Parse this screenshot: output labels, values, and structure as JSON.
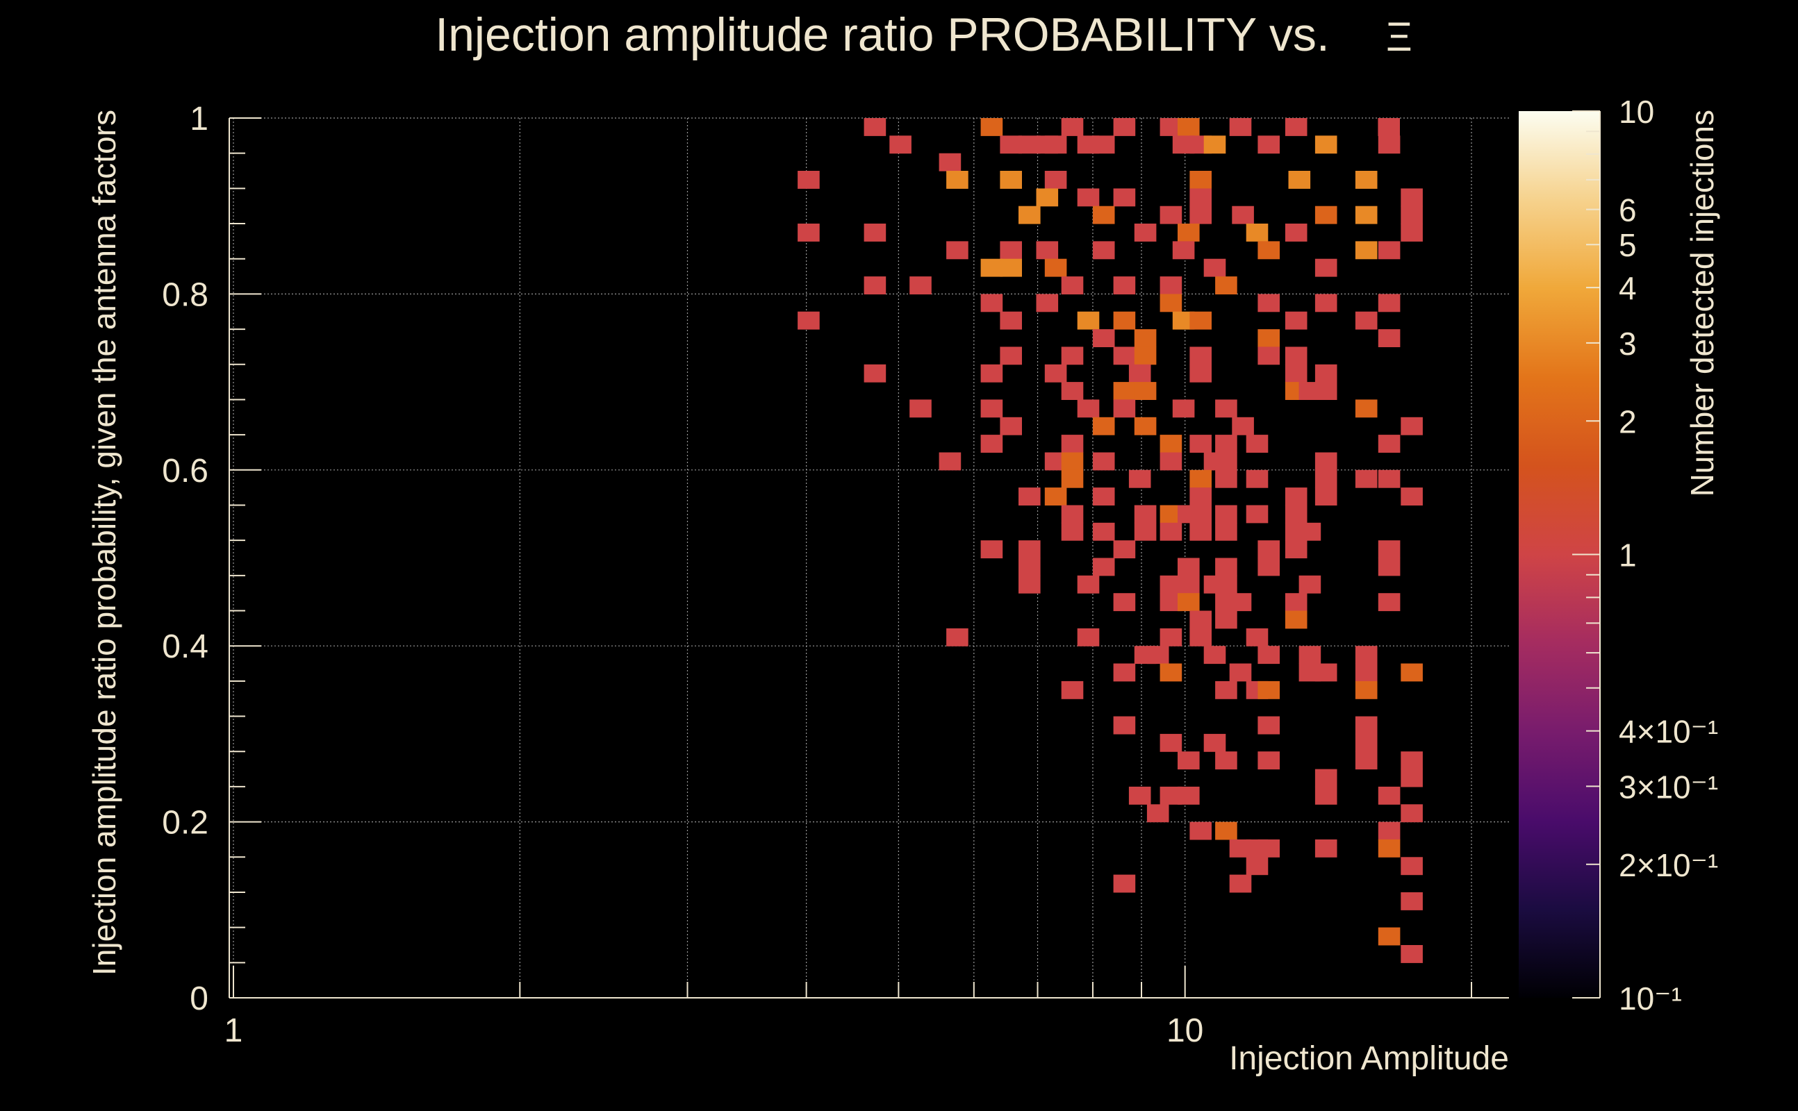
{
  "chart_data": {
    "type": "heatmap",
    "title": "Injection amplitude ratio PROBABILITY vs.",
    "title_symbol": "Ξ",
    "xlabel": "Injection Amplitude",
    "ylabel": "Injection amplitude ratio probability, given the antenna factors",
    "zlabel": "Number detected injections",
    "x_scale": "log",
    "xlim": [
      0.99,
      21.9
    ],
    "ylim": [
      0,
      1
    ],
    "x_ticks": [
      {
        "value": 1,
        "label": "1"
      },
      {
        "value": 10,
        "label": "10"
      }
    ],
    "y_ticks": [
      {
        "value": 0,
        "label": "0"
      },
      {
        "value": 0.2,
        "label": "0.2"
      },
      {
        "value": 0.4,
        "label": "0.4"
      },
      {
        "value": 0.6,
        "label": "0.6"
      },
      {
        "value": 0.8,
        "label": "0.8"
      },
      {
        "value": 1,
        "label": "1"
      }
    ],
    "z_scale": "log",
    "zlim": [
      0.1,
      10
    ],
    "z_ticks": [
      {
        "value": 10,
        "label": "10"
      },
      {
        "value": 6,
        "label": "6"
      },
      {
        "value": 5,
        "label": "5"
      },
      {
        "value": 4,
        "label": "4"
      },
      {
        "value": 3,
        "label": "3"
      },
      {
        "value": 2,
        "label": "2"
      },
      {
        "value": 1,
        "label": "1"
      },
      {
        "value": 0.4,
        "label": "4×10⁻¹"
      },
      {
        "value": 0.3,
        "label": "3×10⁻¹"
      },
      {
        "value": 0.2,
        "label": "2×10⁻¹"
      },
      {
        "value": 0.1,
        "label": "10⁻¹"
      }
    ],
    "grid": true,
    "cells": [
      {
        "x": 4.72,
        "y": 0.99,
        "v": 1
      },
      {
        "x": 6.26,
        "y": 0.99,
        "v": 2
      },
      {
        "x": 7.61,
        "y": 0.99,
        "v": 1
      },
      {
        "x": 8.63,
        "y": 0.99,
        "v": 1
      },
      {
        "x": 9.66,
        "y": 0.99,
        "v": 1
      },
      {
        "x": 10.08,
        "y": 0.99,
        "v": 2
      },
      {
        "x": 11.43,
        "y": 0.99,
        "v": 1
      },
      {
        "x": 13.08,
        "y": 0.99,
        "v": 1
      },
      {
        "x": 16.37,
        "y": 0.99,
        "v": 1
      },
      {
        "x": 5.02,
        "y": 0.97,
        "v": 1
      },
      {
        "x": 6.56,
        "y": 0.97,
        "v": 1
      },
      {
        "x": 6.86,
        "y": 0.97,
        "v": 1
      },
      {
        "x": 7.16,
        "y": 0.97,
        "v": 1
      },
      {
        "x": 7.31,
        "y": 0.97,
        "v": 1
      },
      {
        "x": 7.91,
        "y": 0.97,
        "v": 1
      },
      {
        "x": 8.21,
        "y": 0.97,
        "v": 1
      },
      {
        "x": 9.96,
        "y": 0.97,
        "v": 1
      },
      {
        "x": 10.38,
        "y": 0.97,
        "v": 1
      },
      {
        "x": 10.74,
        "y": 0.97,
        "v": 3
      },
      {
        "x": 12.24,
        "y": 0.97,
        "v": 1
      },
      {
        "x": 14.06,
        "y": 0.97,
        "v": 3
      },
      {
        "x": 16.38,
        "y": 0.97,
        "v": 1
      },
      {
        "x": 4.02,
        "y": 0.93,
        "v": 1
      },
      {
        "x": 5.66,
        "y": 0.95,
        "v": 1
      },
      {
        "x": 5.76,
        "y": 0.93,
        "v": 3
      },
      {
        "x": 6.56,
        "y": 0.93,
        "v": 3
      },
      {
        "x": 7.31,
        "y": 0.93,
        "v": 1
      },
      {
        "x": 10.38,
        "y": 0.93,
        "v": 2
      },
      {
        "x": 13.18,
        "y": 0.93,
        "v": 3
      },
      {
        "x": 15.5,
        "y": 0.93,
        "v": 3
      },
      {
        "x": 7.16,
        "y": 0.91,
        "v": 3
      },
      {
        "x": 7.91,
        "y": 0.91,
        "v": 1
      },
      {
        "x": 8.63,
        "y": 0.91,
        "v": 1
      },
      {
        "x": 10.38,
        "y": 0.91,
        "v": 1
      },
      {
        "x": 17.3,
        "y": 0.91,
        "v": 1
      },
      {
        "x": 6.86,
        "y": 0.89,
        "v": 3
      },
      {
        "x": 8.21,
        "y": 0.89,
        "v": 2
      },
      {
        "x": 9.66,
        "y": 0.89,
        "v": 1
      },
      {
        "x": 10.38,
        "y": 0.89,
        "v": 1
      },
      {
        "x": 11.5,
        "y": 0.89,
        "v": 1
      },
      {
        "x": 14.06,
        "y": 0.89,
        "v": 2
      },
      {
        "x": 15.5,
        "y": 0.89,
        "v": 3
      },
      {
        "x": 17.3,
        "y": 0.89,
        "v": 1
      },
      {
        "x": 4.02,
        "y": 0.87,
        "v": 1
      },
      {
        "x": 4.72,
        "y": 0.87,
        "v": 1
      },
      {
        "x": 9.08,
        "y": 0.87,
        "v": 1
      },
      {
        "x": 10.08,
        "y": 0.87,
        "v": 2
      },
      {
        "x": 11.9,
        "y": 0.87,
        "v": 3
      },
      {
        "x": 13.08,
        "y": 0.87,
        "v": 1
      },
      {
        "x": 17.3,
        "y": 0.87,
        "v": 1
      },
      {
        "x": 5.76,
        "y": 0.85,
        "v": 1
      },
      {
        "x": 6.56,
        "y": 0.85,
        "v": 1
      },
      {
        "x": 7.16,
        "y": 0.85,
        "v": 1
      },
      {
        "x": 8.21,
        "y": 0.85,
        "v": 1
      },
      {
        "x": 9.96,
        "y": 0.85,
        "v": 1
      },
      {
        "x": 12.24,
        "y": 0.85,
        "v": 2
      },
      {
        "x": 15.5,
        "y": 0.85,
        "v": 3
      },
      {
        "x": 16.38,
        "y": 0.85,
        "v": 1
      },
      {
        "x": 6.26,
        "y": 0.83,
        "v": 3
      },
      {
        "x": 6.56,
        "y": 0.83,
        "v": 3
      },
      {
        "x": 7.31,
        "y": 0.83,
        "v": 2
      },
      {
        "x": 10.74,
        "y": 0.83,
        "v": 1
      },
      {
        "x": 14.06,
        "y": 0.83,
        "v": 1
      },
      {
        "x": 4.72,
        "y": 0.81,
        "v": 1
      },
      {
        "x": 5.27,
        "y": 0.81,
        "v": 1
      },
      {
        "x": 7.61,
        "y": 0.81,
        "v": 1
      },
      {
        "x": 8.63,
        "y": 0.81,
        "v": 1
      },
      {
        "x": 9.66,
        "y": 0.81,
        "v": 1
      },
      {
        "x": 11.04,
        "y": 0.81,
        "v": 2
      },
      {
        "x": 6.26,
        "y": 0.79,
        "v": 1
      },
      {
        "x": 7.16,
        "y": 0.79,
        "v": 1
      },
      {
        "x": 9.66,
        "y": 0.79,
        "v": 2
      },
      {
        "x": 12.24,
        "y": 0.79,
        "v": 1
      },
      {
        "x": 14.06,
        "y": 0.79,
        "v": 1
      },
      {
        "x": 16.38,
        "y": 0.79,
        "v": 1
      },
      {
        "x": 4.02,
        "y": 0.77,
        "v": 1
      },
      {
        "x": 6.56,
        "y": 0.77,
        "v": 1
      },
      {
        "x": 7.91,
        "y": 0.77,
        "v": 3
      },
      {
        "x": 8.63,
        "y": 0.77,
        "v": 2
      },
      {
        "x": 9.96,
        "y": 0.77,
        "v": 3
      },
      {
        "x": 10.38,
        "y": 0.77,
        "v": 2
      },
      {
        "x": 13.08,
        "y": 0.77,
        "v": 1
      },
      {
        "x": 15.5,
        "y": 0.77,
        "v": 1
      },
      {
        "x": 8.21,
        "y": 0.75,
        "v": 1
      },
      {
        "x": 9.08,
        "y": 0.75,
        "v": 2
      },
      {
        "x": 12.24,
        "y": 0.75,
        "v": 2
      },
      {
        "x": 16.38,
        "y": 0.75,
        "v": 1
      },
      {
        "x": 6.56,
        "y": 0.73,
        "v": 1
      },
      {
        "x": 7.61,
        "y": 0.73,
        "v": 1
      },
      {
        "x": 8.63,
        "y": 0.73,
        "v": 1
      },
      {
        "x": 9.08,
        "y": 0.73,
        "v": 2
      },
      {
        "x": 10.38,
        "y": 0.73,
        "v": 1
      },
      {
        "x": 12.24,
        "y": 0.73,
        "v": 1
      },
      {
        "x": 13.08,
        "y": 0.73,
        "v": 1
      },
      {
        "x": 4.72,
        "y": 0.71,
        "v": 1
      },
      {
        "x": 6.26,
        "y": 0.71,
        "v": 1
      },
      {
        "x": 7.31,
        "y": 0.71,
        "v": 1
      },
      {
        "x": 8.96,
        "y": 0.71,
        "v": 1
      },
      {
        "x": 10.38,
        "y": 0.71,
        "v": 1
      },
      {
        "x": 13.08,
        "y": 0.71,
        "v": 1
      },
      {
        "x": 14.06,
        "y": 0.71,
        "v": 1
      },
      {
        "x": 7.61,
        "y": 0.69,
        "v": 1
      },
      {
        "x": 8.63,
        "y": 0.69,
        "v": 2
      },
      {
        "x": 9.08,
        "y": 0.69,
        "v": 2
      },
      {
        "x": 13.08,
        "y": 0.69,
        "v": 2
      },
      {
        "x": 13.52,
        "y": 0.69,
        "v": 1
      },
      {
        "x": 14.06,
        "y": 0.69,
        "v": 1
      },
      {
        "x": 5.27,
        "y": 0.67,
        "v": 1
      },
      {
        "x": 6.26,
        "y": 0.67,
        "v": 1
      },
      {
        "x": 7.91,
        "y": 0.67,
        "v": 1
      },
      {
        "x": 8.63,
        "y": 0.67,
        "v": 1
      },
      {
        "x": 9.96,
        "y": 0.67,
        "v": 1
      },
      {
        "x": 11.04,
        "y": 0.67,
        "v": 1
      },
      {
        "x": 15.5,
        "y": 0.67,
        "v": 2
      },
      {
        "x": 6.56,
        "y": 0.65,
        "v": 1
      },
      {
        "x": 8.21,
        "y": 0.65,
        "v": 2
      },
      {
        "x": 9.08,
        "y": 0.65,
        "v": 2
      },
      {
        "x": 11.5,
        "y": 0.65,
        "v": 1
      },
      {
        "x": 17.3,
        "y": 0.65,
        "v": 1
      },
      {
        "x": 6.26,
        "y": 0.63,
        "v": 1
      },
      {
        "x": 7.61,
        "y": 0.63,
        "v": 1
      },
      {
        "x": 9.66,
        "y": 0.63,
        "v": 2
      },
      {
        "x": 10.38,
        "y": 0.63,
        "v": 1
      },
      {
        "x": 11.04,
        "y": 0.63,
        "v": 1
      },
      {
        "x": 11.9,
        "y": 0.63,
        "v": 1
      },
      {
        "x": 16.38,
        "y": 0.63,
        "v": 1
      },
      {
        "x": 5.66,
        "y": 0.61,
        "v": 1
      },
      {
        "x": 7.31,
        "y": 0.61,
        "v": 1
      },
      {
        "x": 7.61,
        "y": 0.61,
        "v": 2
      },
      {
        "x": 8.21,
        "y": 0.61,
        "v": 1
      },
      {
        "x": 9.66,
        "y": 0.61,
        "v": 1
      },
      {
        "x": 10.74,
        "y": 0.61,
        "v": 1
      },
      {
        "x": 11.04,
        "y": 0.61,
        "v": 1
      },
      {
        "x": 14.06,
        "y": 0.61,
        "v": 1
      },
      {
        "x": 7.61,
        "y": 0.59,
        "v": 2
      },
      {
        "x": 8.96,
        "y": 0.59,
        "v": 1
      },
      {
        "x": 10.38,
        "y": 0.59,
        "v": 2
      },
      {
        "x": 11.04,
        "y": 0.59,
        "v": 1
      },
      {
        "x": 11.9,
        "y": 0.59,
        "v": 1
      },
      {
        "x": 14.06,
        "y": 0.59,
        "v": 1
      },
      {
        "x": 15.5,
        "y": 0.59,
        "v": 1
      },
      {
        "x": 16.38,
        "y": 0.59,
        "v": 1
      },
      {
        "x": 6.86,
        "y": 0.57,
        "v": 1
      },
      {
        "x": 7.31,
        "y": 0.57,
        "v": 2
      },
      {
        "x": 8.21,
        "y": 0.57,
        "v": 1
      },
      {
        "x": 10.38,
        "y": 0.57,
        "v": 1
      },
      {
        "x": 13.08,
        "y": 0.57,
        "v": 1
      },
      {
        "x": 14.06,
        "y": 0.57,
        "v": 1
      },
      {
        "x": 17.3,
        "y": 0.57,
        "v": 1
      },
      {
        "x": 7.61,
        "y": 0.55,
        "v": 1
      },
      {
        "x": 9.08,
        "y": 0.55,
        "v": 1
      },
      {
        "x": 9.66,
        "y": 0.55,
        "v": 2
      },
      {
        "x": 10.08,
        "y": 0.55,
        "v": 1
      },
      {
        "x": 10.38,
        "y": 0.55,
        "v": 1
      },
      {
        "x": 11.04,
        "y": 0.55,
        "v": 1
      },
      {
        "x": 11.9,
        "y": 0.55,
        "v": 1
      },
      {
        "x": 13.08,
        "y": 0.55,
        "v": 1
      },
      {
        "x": 7.61,
        "y": 0.53,
        "v": 1
      },
      {
        "x": 8.21,
        "y": 0.53,
        "v": 1
      },
      {
        "x": 9.08,
        "y": 0.53,
        "v": 1
      },
      {
        "x": 9.66,
        "y": 0.53,
        "v": 1
      },
      {
        "x": 10.38,
        "y": 0.53,
        "v": 1
      },
      {
        "x": 11.04,
        "y": 0.53,
        "v": 1
      },
      {
        "x": 13.08,
        "y": 0.53,
        "v": 1
      },
      {
        "x": 13.52,
        "y": 0.53,
        "v": 1
      },
      {
        "x": 6.26,
        "y": 0.51,
        "v": 1
      },
      {
        "x": 6.86,
        "y": 0.51,
        "v": 1
      },
      {
        "x": 8.63,
        "y": 0.51,
        "v": 1
      },
      {
        "x": 12.24,
        "y": 0.51,
        "v": 1
      },
      {
        "x": 13.08,
        "y": 0.51,
        "v": 1
      },
      {
        "x": 16.38,
        "y": 0.51,
        "v": 1
      },
      {
        "x": 6.86,
        "y": 0.49,
        "v": 1
      },
      {
        "x": 8.21,
        "y": 0.49,
        "v": 1
      },
      {
        "x": 10.08,
        "y": 0.49,
        "v": 1
      },
      {
        "x": 11.04,
        "y": 0.49,
        "v": 1
      },
      {
        "x": 12.24,
        "y": 0.49,
        "v": 1
      },
      {
        "x": 16.38,
        "y": 0.49,
        "v": 1
      },
      {
        "x": 6.86,
        "y": 0.47,
        "v": 1
      },
      {
        "x": 7.91,
        "y": 0.47,
        "v": 1
      },
      {
        "x": 9.66,
        "y": 0.47,
        "v": 1
      },
      {
        "x": 10.08,
        "y": 0.47,
        "v": 1
      },
      {
        "x": 10.74,
        "y": 0.47,
        "v": 1
      },
      {
        "x": 11.04,
        "y": 0.47,
        "v": 1
      },
      {
        "x": 13.52,
        "y": 0.47,
        "v": 1
      },
      {
        "x": 8.63,
        "y": 0.45,
        "v": 1
      },
      {
        "x": 9.66,
        "y": 0.45,
        "v": 1
      },
      {
        "x": 10.08,
        "y": 0.45,
        "v": 2
      },
      {
        "x": 11.04,
        "y": 0.45,
        "v": 1
      },
      {
        "x": 11.43,
        "y": 0.45,
        "v": 1
      },
      {
        "x": 13.08,
        "y": 0.45,
        "v": 1
      },
      {
        "x": 16.38,
        "y": 0.45,
        "v": 1
      },
      {
        "x": 10.38,
        "y": 0.43,
        "v": 1
      },
      {
        "x": 11.04,
        "y": 0.43,
        "v": 1
      },
      {
        "x": 13.08,
        "y": 0.43,
        "v": 2
      },
      {
        "x": 5.76,
        "y": 0.41,
        "v": 1
      },
      {
        "x": 7.91,
        "y": 0.41,
        "v": 1
      },
      {
        "x": 9.66,
        "y": 0.41,
        "v": 1
      },
      {
        "x": 10.38,
        "y": 0.41,
        "v": 1
      },
      {
        "x": 11.9,
        "y": 0.41,
        "v": 1
      },
      {
        "x": 9.08,
        "y": 0.39,
        "v": 1
      },
      {
        "x": 9.36,
        "y": 0.39,
        "v": 1
      },
      {
        "x": 10.74,
        "y": 0.39,
        "v": 1
      },
      {
        "x": 12.24,
        "y": 0.39,
        "v": 1
      },
      {
        "x": 13.52,
        "y": 0.39,
        "v": 1
      },
      {
        "x": 15.5,
        "y": 0.39,
        "v": 1
      },
      {
        "x": 8.63,
        "y": 0.37,
        "v": 1
      },
      {
        "x": 9.66,
        "y": 0.37,
        "v": 2
      },
      {
        "x": 11.43,
        "y": 0.37,
        "v": 1
      },
      {
        "x": 13.52,
        "y": 0.37,
        "v": 1
      },
      {
        "x": 14.06,
        "y": 0.37,
        "v": 1
      },
      {
        "x": 15.5,
        "y": 0.37,
        "v": 1
      },
      {
        "x": 17.3,
        "y": 0.37,
        "v": 2
      },
      {
        "x": 7.61,
        "y": 0.35,
        "v": 1
      },
      {
        "x": 11.04,
        "y": 0.35,
        "v": 1
      },
      {
        "x": 11.9,
        "y": 0.35,
        "v": 1
      },
      {
        "x": 12.24,
        "y": 0.35,
        "v": 2
      },
      {
        "x": 15.5,
        "y": 0.35,
        "v": 2
      },
      {
        "x": 8.63,
        "y": 0.31,
        "v": 1
      },
      {
        "x": 12.24,
        "y": 0.31,
        "v": 1
      },
      {
        "x": 15.5,
        "y": 0.31,
        "v": 1
      },
      {
        "x": 9.66,
        "y": 0.29,
        "v": 1
      },
      {
        "x": 10.74,
        "y": 0.29,
        "v": 1
      },
      {
        "x": 15.5,
        "y": 0.29,
        "v": 1
      },
      {
        "x": 10.08,
        "y": 0.27,
        "v": 1
      },
      {
        "x": 11.04,
        "y": 0.27,
        "v": 1
      },
      {
        "x": 12.24,
        "y": 0.27,
        "v": 1
      },
      {
        "x": 15.5,
        "y": 0.27,
        "v": 1
      },
      {
        "x": 17.3,
        "y": 0.27,
        "v": 1
      },
      {
        "x": 14.06,
        "y": 0.25,
        "v": 1
      },
      {
        "x": 17.3,
        "y": 0.25,
        "v": 1
      },
      {
        "x": 8.96,
        "y": 0.23,
        "v": 1
      },
      {
        "x": 9.66,
        "y": 0.23,
        "v": 1
      },
      {
        "x": 10.08,
        "y": 0.23,
        "v": 1
      },
      {
        "x": 14.06,
        "y": 0.23,
        "v": 1
      },
      {
        "x": 16.38,
        "y": 0.23,
        "v": 1
      },
      {
        "x": 9.36,
        "y": 0.21,
        "v": 1
      },
      {
        "x": 17.3,
        "y": 0.21,
        "v": 1
      },
      {
        "x": 10.38,
        "y": 0.19,
        "v": 1
      },
      {
        "x": 11.04,
        "y": 0.19,
        "v": 2
      },
      {
        "x": 16.38,
        "y": 0.19,
        "v": 1
      },
      {
        "x": 11.43,
        "y": 0.17,
        "v": 1
      },
      {
        "x": 11.9,
        "y": 0.17,
        "v": 1
      },
      {
        "x": 12.24,
        "y": 0.17,
        "v": 1
      },
      {
        "x": 14.06,
        "y": 0.17,
        "v": 1
      },
      {
        "x": 16.38,
        "y": 0.17,
        "v": 2
      },
      {
        "x": 11.9,
        "y": 0.15,
        "v": 1
      },
      {
        "x": 17.3,
        "y": 0.15,
        "v": 1
      },
      {
        "x": 8.63,
        "y": 0.13,
        "v": 1
      },
      {
        "x": 11.43,
        "y": 0.13,
        "v": 1
      },
      {
        "x": 17.3,
        "y": 0.11,
        "v": 1
      },
      {
        "x": 16.38,
        "y": 0.07,
        "v": 2
      },
      {
        "x": 17.3,
        "y": 0.05,
        "v": 1
      }
    ]
  },
  "colors": {
    "background": "#000000",
    "text": "#efe6cf",
    "grid": "#9a9a9a",
    "palette": [
      "#000004",
      "#1b0c41",
      "#4a0c6b",
      "#781c6d",
      "#a52c60",
      "#cf4446",
      "#d4531d",
      "#e3751a",
      "#f0a83a",
      "#f6d28d",
      "#fcfdf0"
    ]
  }
}
